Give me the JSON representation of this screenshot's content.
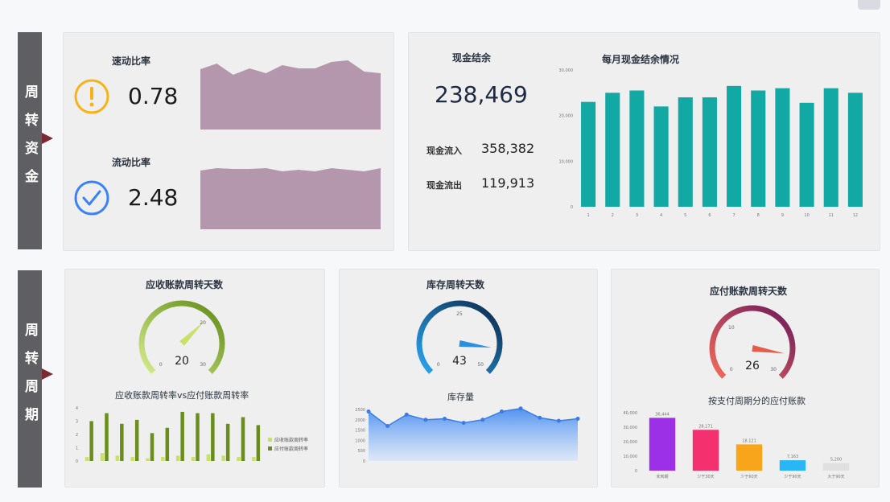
{
  "sections": {
    "top": "周转资金",
    "bottom": "周转周期"
  },
  "ratios": {
    "quick": {
      "label": "速动比率",
      "value": "0.78",
      "icon": "exclamation-icon",
      "color": "#f5b316"
    },
    "current": {
      "label": "流动比率",
      "value": "2.48",
      "icon": "check-icon",
      "color": "#3b82f6"
    },
    "area_color": "#b497ad"
  },
  "cash": {
    "title": "现金结余",
    "value": "238,469",
    "inflow_label": "现金流入",
    "inflow": "358,382",
    "outflow_label": "现金流出",
    "outflow": "119,913"
  },
  "monthly_cash": {
    "title": "每月现金结余情况",
    "color": "#12a8a4",
    "y_ticks": [
      "30,000",
      "20,000",
      "10,000",
      "0"
    ]
  },
  "ar_turnover": {
    "title": "应收账款周转天数",
    "gauge_value": "20",
    "gauge_min": "0",
    "gauge_mid": "20",
    "gauge_max": "30",
    "bar_title": "应收账款周转率vs应付账款周转率",
    "legend": [
      "应收账款周转率",
      "应付账款周转率"
    ],
    "color_light": "#c7e16b",
    "color_dark": "#6a8d1d"
  },
  "inventory": {
    "title": "库存周转天数",
    "gauge_value": "43",
    "gauge_min": "0",
    "gauge_mid": "25",
    "gauge_max": "50",
    "area_title": "库存量",
    "y_ticks": [
      "2500",
      "2000",
      "1500",
      "1000",
      "500",
      "0"
    ],
    "color": "#4a8ef0"
  },
  "ap_turnover": {
    "title": "应付账款周转天数",
    "gauge_value": "26",
    "gauge_min": "0",
    "gauge_mid": "10",
    "gauge_max": "30",
    "bar_title": "按支付周期分的应付账款",
    "y_ticks": [
      "40,000",
      "30,000",
      "20,000",
      "10,000",
      "0"
    ]
  },
  "chart_data": [
    {
      "type": "area",
      "title": "",
      "x": [
        1,
        2,
        3,
        4,
        5,
        6,
        7,
        8,
        9,
        10,
        11,
        12
      ],
      "values": [
        0.75,
        0.82,
        0.68,
        0.76,
        0.7,
        0.8,
        0.76,
        0.76,
        0.84,
        0.86,
        0.72,
        0.7
      ],
      "ylim": [
        0,
        1
      ]
    },
    {
      "type": "area",
      "title": "",
      "x": [
        1,
        2,
        3,
        4,
        5,
        6,
        7,
        8,
        9,
        10,
        11,
        12
      ],
      "values": [
        0.73,
        0.76,
        0.75,
        0.75,
        0.76,
        0.72,
        0.74,
        0.72,
        0.76,
        0.74,
        0.72,
        0.76
      ],
      "ylim": [
        0,
        1
      ]
    },
    {
      "type": "bar",
      "title": "每月现金结余情况",
      "categories": [
        "1",
        "2",
        "3",
        "4",
        "5",
        "6",
        "7",
        "8",
        "9",
        "10",
        "11",
        "12"
      ],
      "values": [
        23000,
        25000,
        25500,
        22000,
        24000,
        24000,
        26500,
        25500,
        26000,
        22800,
        26000,
        25000
      ],
      "ylim": [
        0,
        30000
      ]
    },
    {
      "type": "bar",
      "title": "应收账款周转率vs应付账款周转率",
      "categories": [
        "1",
        "2",
        "3",
        "4",
        "5",
        "6",
        "7",
        "8",
        "9",
        "10",
        "11",
        "12"
      ],
      "series": [
        {
          "name": "应收账款周转率",
          "values": [
            0.3,
            0.6,
            0.4,
            0.3,
            0.2,
            0.3,
            0.4,
            0.3,
            0.5,
            0.4,
            0.3,
            0.3
          ]
        },
        {
          "name": "应付账款周转率",
          "values": [
            3.0,
            3.6,
            2.8,
            3.1,
            2.1,
            2.5,
            3.7,
            3.6,
            3.6,
            2.8,
            3.3,
            2.7
          ]
        }
      ],
      "ylim": [
        0,
        4
      ]
    },
    {
      "type": "area",
      "title": "库存量",
      "x": [
        1,
        2,
        3,
        4,
        5,
        6,
        7,
        8,
        9,
        10,
        11,
        12
      ],
      "values": [
        2400,
        1700,
        2250,
        2000,
        2050,
        1850,
        2000,
        2400,
        2550,
        2100,
        1950,
        2050
      ],
      "ylim": [
        0,
        2500
      ]
    },
    {
      "type": "bar",
      "title": "按支付周期分的应付账款",
      "categories": [
        "未到期",
        "少于30天",
        "少于60天",
        "少于90天",
        "大于90天"
      ],
      "values": [
        36444,
        28171,
        18121,
        7163,
        5200
      ],
      "data_labels": [
        "36,444",
        "28,171",
        "18,121",
        "7,163",
        "5,200"
      ],
      "colors": [
        "#9b30e6",
        "#f4306e",
        "#f9a51b",
        "#29b6f6",
        "#e0e0e0"
      ],
      "ylim": [
        0,
        40000
      ]
    }
  ]
}
